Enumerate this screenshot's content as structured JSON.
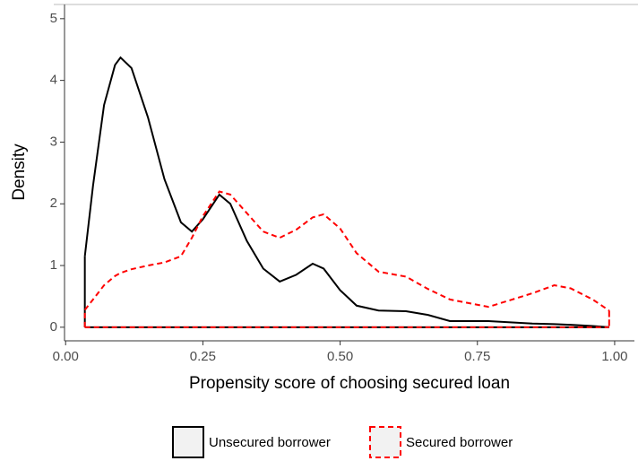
{
  "chart_data": {
    "type": "density",
    "x_label": "Propensity score of choosing secured loan",
    "y_label": "Density",
    "x": [
      0.035,
      0.05,
      0.07,
      0.09,
      0.1,
      0.12,
      0.15,
      0.18,
      0.21,
      0.23,
      0.25,
      0.28,
      0.3,
      0.33,
      0.36,
      0.39,
      0.42,
      0.45,
      0.47,
      0.5,
      0.53,
      0.57,
      0.62,
      0.66,
      0.7,
      0.77,
      0.85,
      0.89,
      0.92,
      0.96,
      0.99
    ],
    "series": [
      {
        "name": "Unsecured borrower",
        "color": "#000000",
        "dashed": false,
        "values": [
          1.15,
          2.3,
          3.6,
          4.25,
          4.37,
          4.2,
          3.4,
          2.4,
          1.7,
          1.55,
          1.75,
          2.15,
          2.0,
          1.4,
          0.95,
          0.74,
          0.85,
          1.03,
          0.95,
          0.6,
          0.35,
          0.27,
          0.26,
          0.2,
          0.1,
          0.1,
          0.06,
          0.05,
          0.04,
          0.02,
          0.0
        ]
      },
      {
        "name": "Secured borrower",
        "color": "#ff0000",
        "dashed": true,
        "values": [
          0.28,
          0.45,
          0.68,
          0.83,
          0.88,
          0.94,
          1.0,
          1.05,
          1.15,
          1.45,
          1.8,
          2.2,
          2.15,
          1.85,
          1.55,
          1.45,
          1.58,
          1.78,
          1.83,
          1.6,
          1.2,
          0.9,
          0.82,
          0.62,
          0.45,
          0.33,
          0.55,
          0.68,
          0.63,
          0.45,
          0.27
        ]
      }
    ],
    "xlim": [
      -0.002,
      1.036
    ],
    "ylim": [
      -0.22,
      5.23
    ],
    "xticks": [
      {
        "value": 0,
        "label": "0.00"
      },
      0.25,
      {
        "value": 0.5,
        "label": "0.50"
      },
      0.75,
      {
        "value": 1,
        "label": "1.00"
      }
    ],
    "yticks": [
      0,
      1,
      2,
      3,
      4,
      5
    ],
    "legend": "bottom"
  }
}
